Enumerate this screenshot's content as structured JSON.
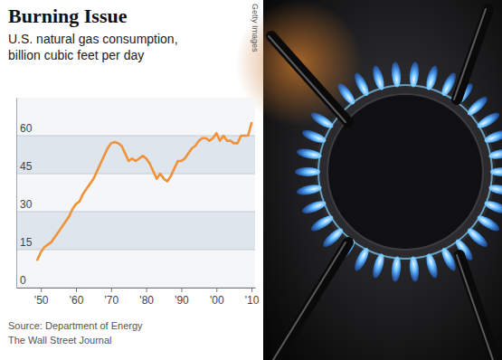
{
  "chart_data": {
    "type": "line",
    "title": "Burning Issue",
    "subtitle": "U.S. natural gas consumption,\nbillion cubic feet per day",
    "annotations": [
      "Source: Department of Energy",
      "The Wall Street Journal",
      "Getty Images"
    ],
    "x": [
      1949,
      1950,
      1951,
      1952,
      1953,
      1954,
      1955,
      1956,
      1957,
      1958,
      1959,
      1960,
      1961,
      1962,
      1963,
      1964,
      1965,
      1966,
      1967,
      1968,
      1969,
      1970,
      1971,
      1972,
      1973,
      1974,
      1975,
      1976,
      1977,
      1978,
      1979,
      1980,
      1981,
      1982,
      1983,
      1984,
      1985,
      1986,
      1987,
      1988,
      1989,
      1990,
      1991,
      1992,
      1993,
      1994,
      1995,
      1996,
      1997,
      1998,
      1999,
      2000,
      2001,
      2002,
      2003,
      2004,
      2005,
      2006,
      2007,
      2008,
      2009,
      2010
    ],
    "values": [
      11,
      14,
      16,
      17,
      18,
      20,
      22,
      24,
      26,
      28,
      31,
      33,
      34,
      37,
      39,
      41,
      43,
      46,
      49,
      52,
      55,
      57,
      57.5,
      57,
      56,
      53,
      50,
      51,
      50,
      51,
      52,
      51,
      49,
      46,
      43,
      45,
      43,
      42,
      44,
      47,
      50,
      50,
      51,
      53,
      55,
      56,
      58,
      59,
      59,
      58,
      59,
      61,
      58,
      60,
      58,
      58,
      57,
      57,
      60,
      60,
      60,
      65
    ],
    "color": "#f0923a",
    "xlim": [
      1943,
      2011
    ],
    "xticks": [
      {
        "value": 1950,
        "label": "'50"
      },
      {
        "value": 1960,
        "label": "'60"
      },
      {
        "value": 1970,
        "label": "'70"
      },
      {
        "value": 1980,
        "label": "'80"
      },
      {
        "value": 1990,
        "label": "'90"
      },
      {
        "value": 2000,
        "label": "'00"
      },
      {
        "value": 2010,
        "label": "'10"
      }
    ],
    "ylim": [
      0,
      75
    ],
    "yticks": [
      0,
      15,
      30,
      45,
      60
    ],
    "grid": true
  }
}
